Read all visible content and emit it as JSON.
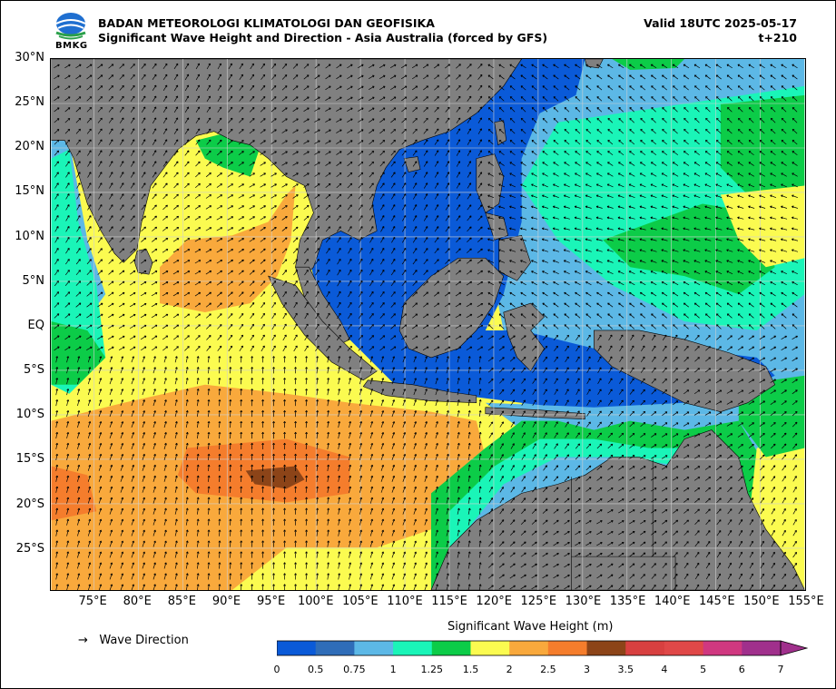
{
  "header": {
    "agency": "BADAN METEOROLOGI KLIMATOLOGI DAN GEOFISIKA",
    "product": "Significant Wave Height and Direction - Asia Australia (forced by GFS)",
    "valid": "Valid 18UTC 2025-05-17",
    "step": "t+210",
    "logo_text": "BMKG"
  },
  "axes": {
    "lat_labels": [
      "30°N",
      "25°N",
      "20°N",
      "15°N",
      "10°N",
      "5°N",
      "EQ",
      "5°S",
      "10°S",
      "15°S",
      "20°S",
      "25°S"
    ],
    "lon_labels": [
      "75°E",
      "80°E",
      "85°E",
      "90°E",
      "95°E",
      "100°E",
      "105°E",
      "110°E",
      "115°E",
      "120°E",
      "125°E",
      "130°E",
      "135°E",
      "140°E",
      "145°E",
      "150°E",
      "155°E"
    ]
  },
  "legend": {
    "wave_direction_symbol": "→",
    "wave_direction_label": "Wave Direction",
    "colorbar_title": "Significant Wave Height (m)",
    "ticks": [
      "0",
      "0.5",
      "0.75",
      "1",
      "1.25",
      "1.5",
      "2",
      "2.5",
      "3",
      "3.5",
      "4",
      "5",
      "6",
      "7"
    ],
    "colors": [
      "#0a5ad8",
      "#2f6db8",
      "#5cb8e6",
      "#1af5b8",
      "#0ccc48",
      "#fbfb50",
      "#f9a93c",
      "#f57d2c",
      "#8c4418",
      "#d84040",
      "#e04848",
      "#d03880",
      "#a0308c"
    ]
  },
  "colors": {
    "land": "#808080",
    "sea_low": "#0a5ad8",
    "sea_mid": "#5cb8e6",
    "sea_green": "#1af5b8",
    "yellow": "#fbfb50",
    "orange": "#f9a93c",
    "dark_orange": "#f57d2c",
    "brown": "#8c4418"
  }
}
